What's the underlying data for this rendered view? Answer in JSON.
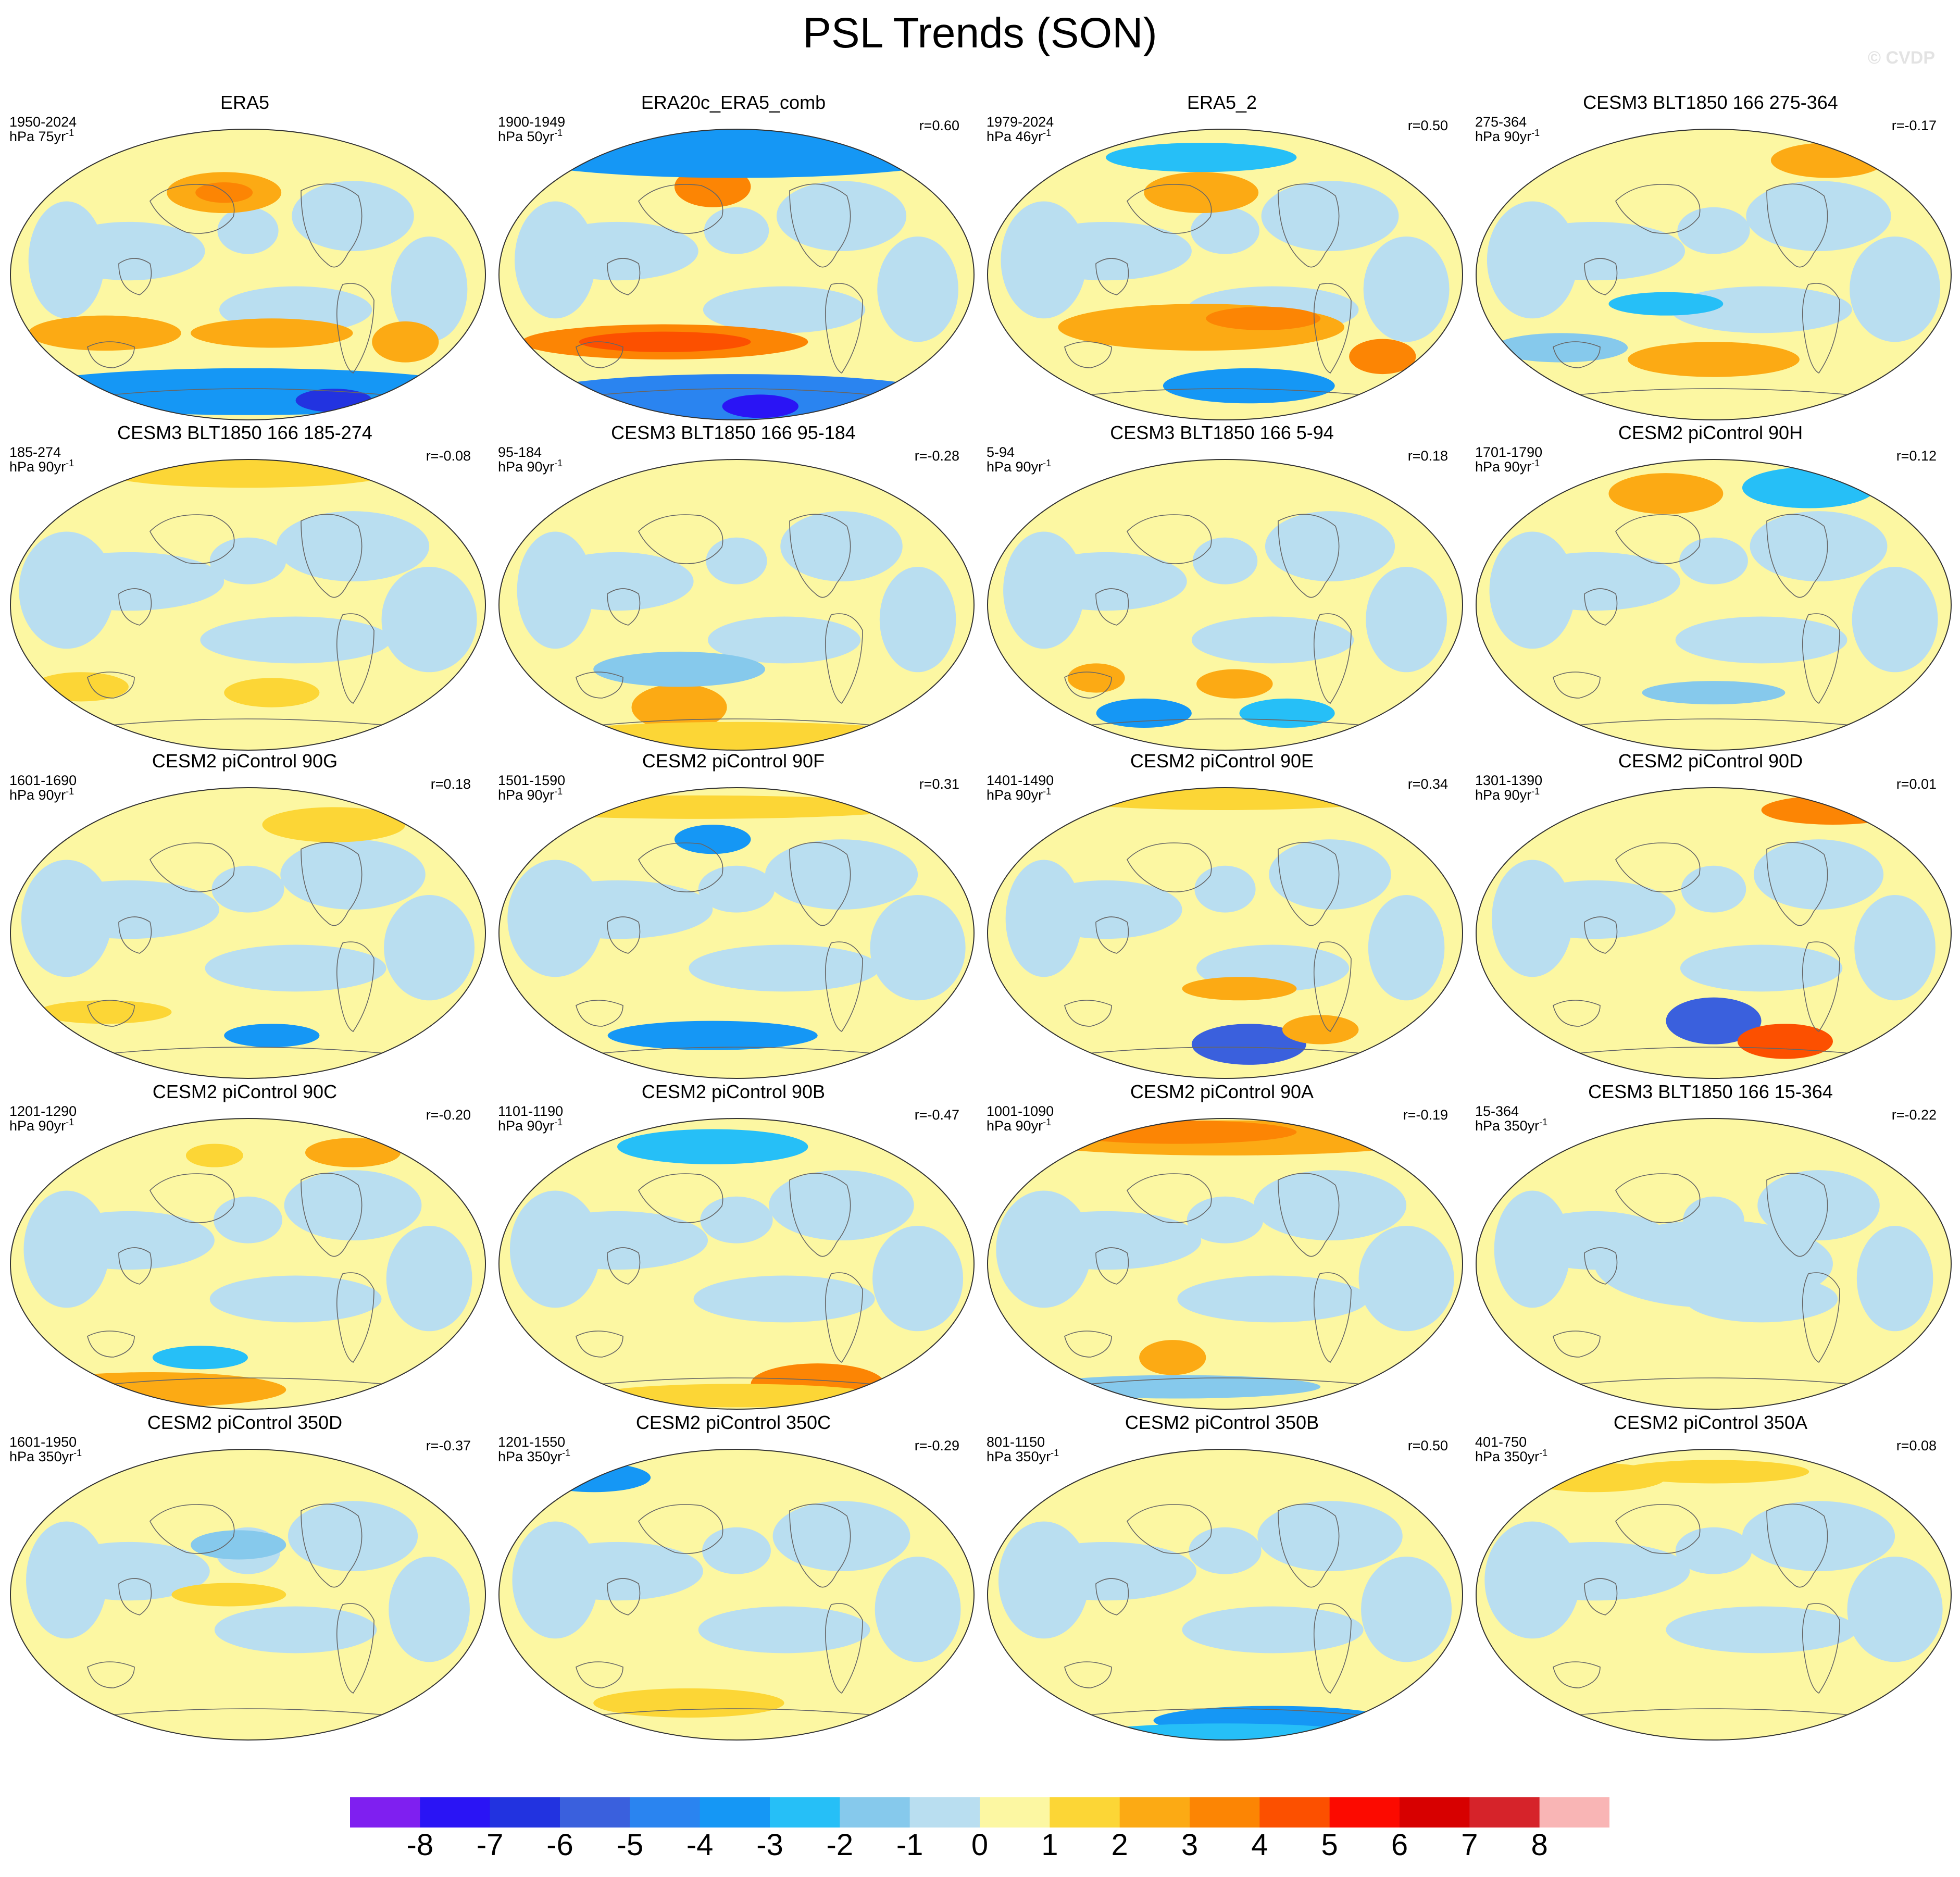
{
  "title": "PSL Trends (SON)",
  "watermark": "© CVDP",
  "panels": [
    {
      "title": "ERA5",
      "years": "1950-2024",
      "units": "hPa 75yr",
      "r": ""
    },
    {
      "title": "ERA20c_ERA5_comb",
      "years": "1900-1949",
      "units": "hPa 50yr",
      "r": "r=0.60"
    },
    {
      "title": "ERA5_2",
      "years": "1979-2024",
      "units": "hPa 46yr",
      "r": "r=0.50"
    },
    {
      "title": "CESM3 BLT1850 166 275-364",
      "years": "275-364",
      "units": "hPa 90yr",
      "r": "r=-0.17"
    },
    {
      "title": "CESM3 BLT1850 166 185-274",
      "years": "185-274",
      "units": "hPa 90yr",
      "r": "r=-0.08"
    },
    {
      "title": "CESM3 BLT1850 166 95-184",
      "years": "95-184",
      "units": "hPa 90yr",
      "r": "r=-0.28"
    },
    {
      "title": "CESM3 BLT1850 166 5-94",
      "years": "5-94",
      "units": "hPa 90yr",
      "r": "r=0.18"
    },
    {
      "title": "CESM2 piControl 90H",
      "years": "1701-1790",
      "units": "hPa 90yr",
      "r": "r=0.12"
    },
    {
      "title": "CESM2 piControl 90G",
      "years": "1601-1690",
      "units": "hPa 90yr",
      "r": "r=0.18"
    },
    {
      "title": "CESM2 piControl 90F",
      "years": "1501-1590",
      "units": "hPa 90yr",
      "r": "r=0.31"
    },
    {
      "title": "CESM2 piControl 90E",
      "years": "1401-1490",
      "units": "hPa 90yr",
      "r": "r=0.34"
    },
    {
      "title": "CESM2 piControl 90D",
      "years": "1301-1390",
      "units": "hPa 90yr",
      "r": "r=0.01"
    },
    {
      "title": "CESM2 piControl 90C",
      "years": "1201-1290",
      "units": "hPa 90yr",
      "r": "r=-0.20"
    },
    {
      "title": "CESM2 piControl 90B",
      "years": "1101-1190",
      "units": "hPa 90yr",
      "r": "r=-0.47"
    },
    {
      "title": "CESM2 piControl 90A",
      "years": "1001-1090",
      "units": "hPa 90yr",
      "r": "r=-0.19"
    },
    {
      "title": "CESM3 BLT1850 166 15-364",
      "years": "15-364",
      "units": "hPa 350yr",
      "r": "r=-0.22"
    },
    {
      "title": "CESM2 piControl 350D",
      "years": "1601-1950",
      "units": "hPa 350yr",
      "r": "r=-0.37"
    },
    {
      "title": "CESM2 piControl 350C",
      "years": "1201-1550",
      "units": "hPa 350yr",
      "r": "r=-0.29"
    },
    {
      "title": "CESM2 piControl 350B",
      "years": "801-1150",
      "units": "hPa 350yr",
      "r": "r=0.50"
    },
    {
      "title": "CESM2 piControl 350A",
      "years": "401-750",
      "units": "hPa 350yr",
      "r": "r=0.08"
    }
  ],
  "units_superscript": "-1",
  "colorbar": {
    "labels": [
      "-8",
      "-7",
      "-6",
      "-5",
      "-4",
      "-3",
      "-2",
      "-1",
      "0",
      "1",
      "2",
      "3",
      "4",
      "5",
      "6",
      "7",
      "8"
    ],
    "colors": [
      "#7f1ff0",
      "#2a14f5",
      "#2233e0",
      "#3a60dd",
      "#2a84f0",
      "#1597f5",
      "#26bff7",
      "#86c9ec",
      "#b9def0",
      "#fcf7a2",
      "#fcd636",
      "#fcaa14",
      "#fc8504",
      "#fc5000",
      "#fc0a00",
      "#d70000",
      "#d6232a",
      "#f9b5b5"
    ]
  }
}
